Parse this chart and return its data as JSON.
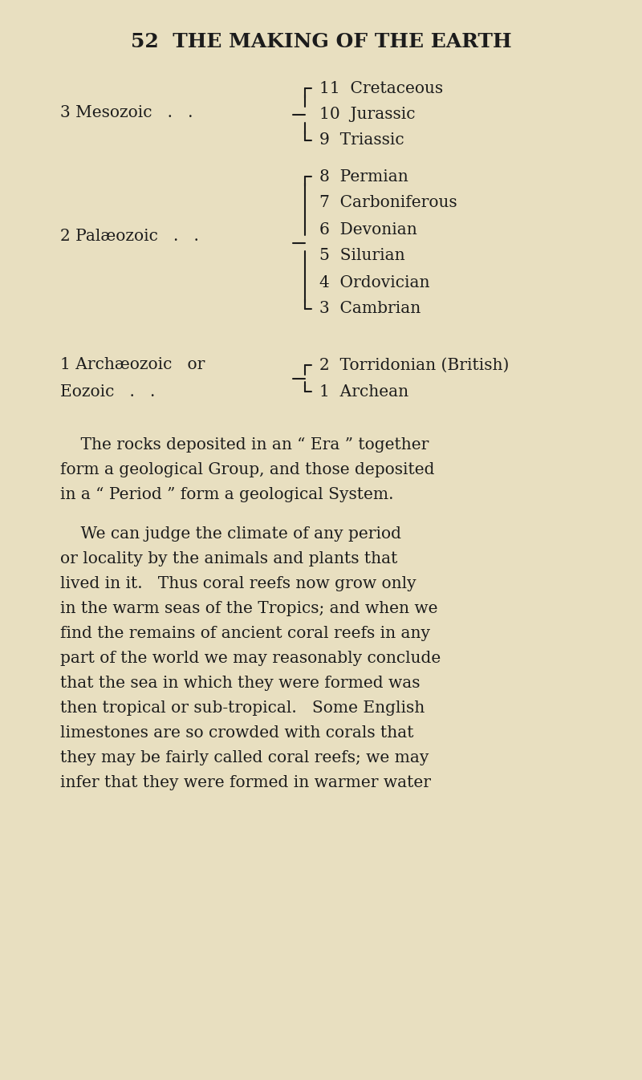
{
  "bg_color": "#e8dfc0",
  "text_color": "#1c1c1c",
  "title": "52  THE MAKING OF THE EARTH",
  "title_fontsize": 18,
  "body_fontsize": 14.5,
  "small_fontsize": 13.5,
  "mesozoic_label": "3 Mesozoic   .   .",
  "mesozoic_items": [
    "11  Cretaceous",
    "10  Jurassic",
    "9  Triassic"
  ],
  "palaeozoic_label": "2 Palæozoic   .   .",
  "palaeozoic_items": [
    "8  Permian",
    "7  Carboniferous",
    "6  Devonian",
    "5  Silurian",
    "4  Ordovician",
    "3  Cambrian"
  ],
  "archean_label1": "1 Archæozoic   or",
  "archean_label2": "Eozoic   .   . ",
  "archean_items": [
    "2  Torridonian (British)",
    "1  Archean"
  ],
  "p1_lines": [
    "    The rocks deposited in an “ Era ” together",
    "form a geological Group, and those deposited",
    "in a “ Period ” form a geological System."
  ],
  "p2_lines": [
    "    We can judge the climate of any period",
    "or locality by the animals and plants that",
    "lived in it.   Thus coral reefs now grow only",
    "in the warm seas of the Tropics; and when we",
    "find the remains of ancient coral reefs in any",
    "part of the world we may reasonably conclude",
    "that the sea in which they were formed was",
    "then tropical or sub-tropical.   Some English",
    "limestones are so crowded with corals that",
    "they may be fairly called coral reefs; we may",
    "infer that they were formed in warmer water"
  ]
}
